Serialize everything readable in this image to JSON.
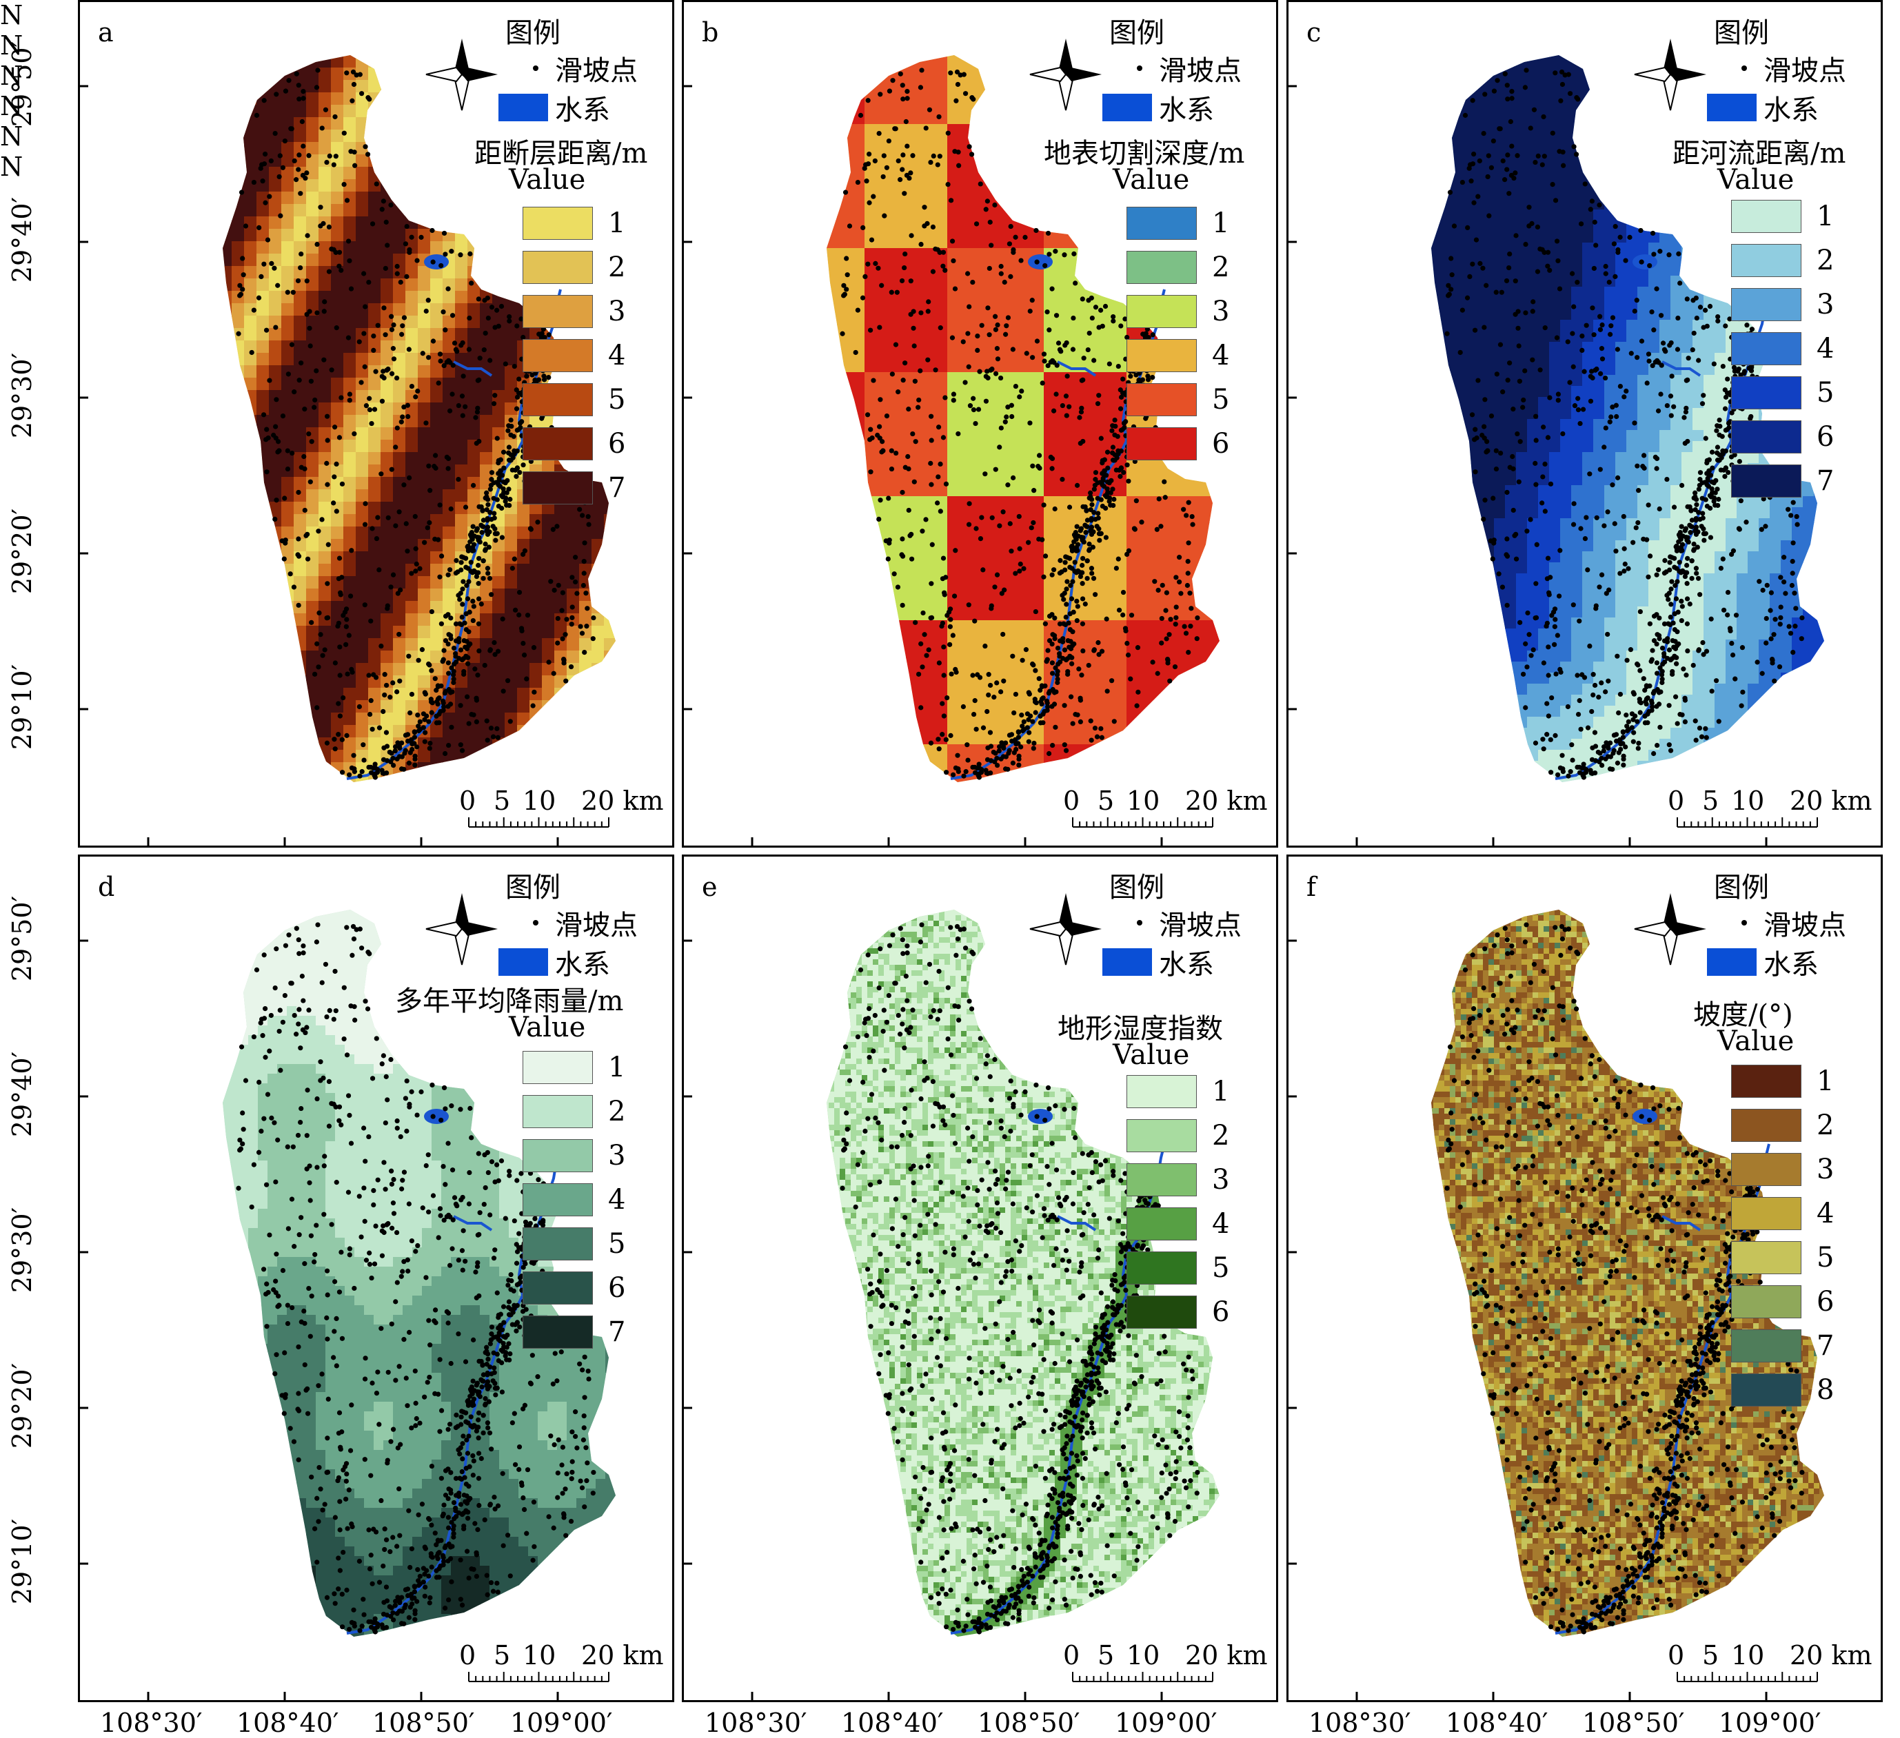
{
  "panels": [
    {
      "id": "a",
      "label": "a",
      "legend_title": "图例",
      "landslide_label": "滑坡点",
      "water_label": "水系",
      "factor_title": "距断层距离/m",
      "value_label": "Value",
      "classes": [
        "1",
        "2",
        "3",
        "4",
        "5",
        "6",
        "7"
      ],
      "colors": [
        "#ecdd62",
        "#e2c255",
        "#dea040",
        "#d47a28",
        "#b84a12",
        "#7c2209",
        "#431010"
      ],
      "river_color": "#1a55d0",
      "north_label": "N"
    },
    {
      "id": "b",
      "label": "b",
      "legend_title": "图例",
      "landslide_label": "滑坡点",
      "water_label": "水系",
      "factor_title": "地表切割深度/m",
      "value_label": "Value",
      "classes": [
        "1",
        "2",
        "3",
        "4",
        "5",
        "6"
      ],
      "colors": [
        "#2f80c7",
        "#7dc086",
        "#c5e257",
        "#e9b43e",
        "#e65127",
        "#d51c17"
      ],
      "river_color": "#1a55d0",
      "north_label": "N"
    },
    {
      "id": "c",
      "label": "c",
      "legend_title": "图例",
      "landslide_label": "滑坡点",
      "water_label": "水系",
      "factor_title": "距河流距离/m",
      "value_label": "Value",
      "classes": [
        "1",
        "2",
        "3",
        "4",
        "5",
        "6",
        "7"
      ],
      "colors": [
        "#c7ecdc",
        "#90cde0",
        "#5ba3d8",
        "#2f72cf",
        "#1140c2",
        "#0d2a8f",
        "#0b1a58"
      ],
      "river_color": "#1a55d0",
      "north_label": "N"
    },
    {
      "id": "d",
      "label": "d",
      "legend_title": "图例",
      "landslide_label": "滑坡点",
      "water_label": "水系",
      "factor_title": "多年平均降雨量/m",
      "value_label": "Value",
      "classes": [
        "1",
        "2",
        "3",
        "4",
        "5",
        "6",
        "7"
      ],
      "colors": [
        "#e8f5ea",
        "#bfe6cd",
        "#93c9a8",
        "#6aa78b",
        "#467c69",
        "#29534a",
        "#152a26"
      ],
      "river_color": "#1a55d0",
      "north_label": "N"
    },
    {
      "id": "e",
      "label": "e",
      "legend_title": "图例",
      "landslide_label": "滑坡点",
      "water_label": "水系",
      "factor_title": "地形湿度指数",
      "value_label": "Value",
      "classes": [
        "1",
        "2",
        "3",
        "4",
        "5",
        "6"
      ],
      "colors": [
        "#d8f3d6",
        "#a8dca0",
        "#7fbf6e",
        "#57a044",
        "#2f7520",
        "#1f4a0d"
      ],
      "river_color": "#1a55d0",
      "north_label": "N"
    },
    {
      "id": "f",
      "label": "f",
      "legend_title": "图例",
      "landslide_label": "滑坡点",
      "water_label": "水系",
      "factor_title": "坡度/(°)",
      "value_label": "Value",
      "classes": [
        "1",
        "2",
        "3",
        "4",
        "5",
        "6",
        "7",
        "8"
      ],
      "colors": [
        "#5a2210",
        "#8c5520",
        "#a67b2e",
        "#c0a638",
        "#c6c35a",
        "#8fa85a",
        "#4f7d5a",
        "#234a55"
      ],
      "river_color": "#1a55d0",
      "north_label": "N"
    }
  ],
  "scale_bar": {
    "labels": [
      "0",
      "5",
      "10",
      "20 km"
    ]
  },
  "axes": {
    "longitude_ticks": [
      "108°30′",
      "108°40′",
      "108°50′",
      "109°00′"
    ],
    "latitude_ticks_top": [
      "29°50′",
      "29°40′",
      "29°30′",
      "29°20′",
      "29°10′"
    ],
    "latitude_ticks_bottom": [
      "29°50′",
      "29°40′",
      "29°30′",
      "29°20′",
      "29°10′"
    ]
  }
}
